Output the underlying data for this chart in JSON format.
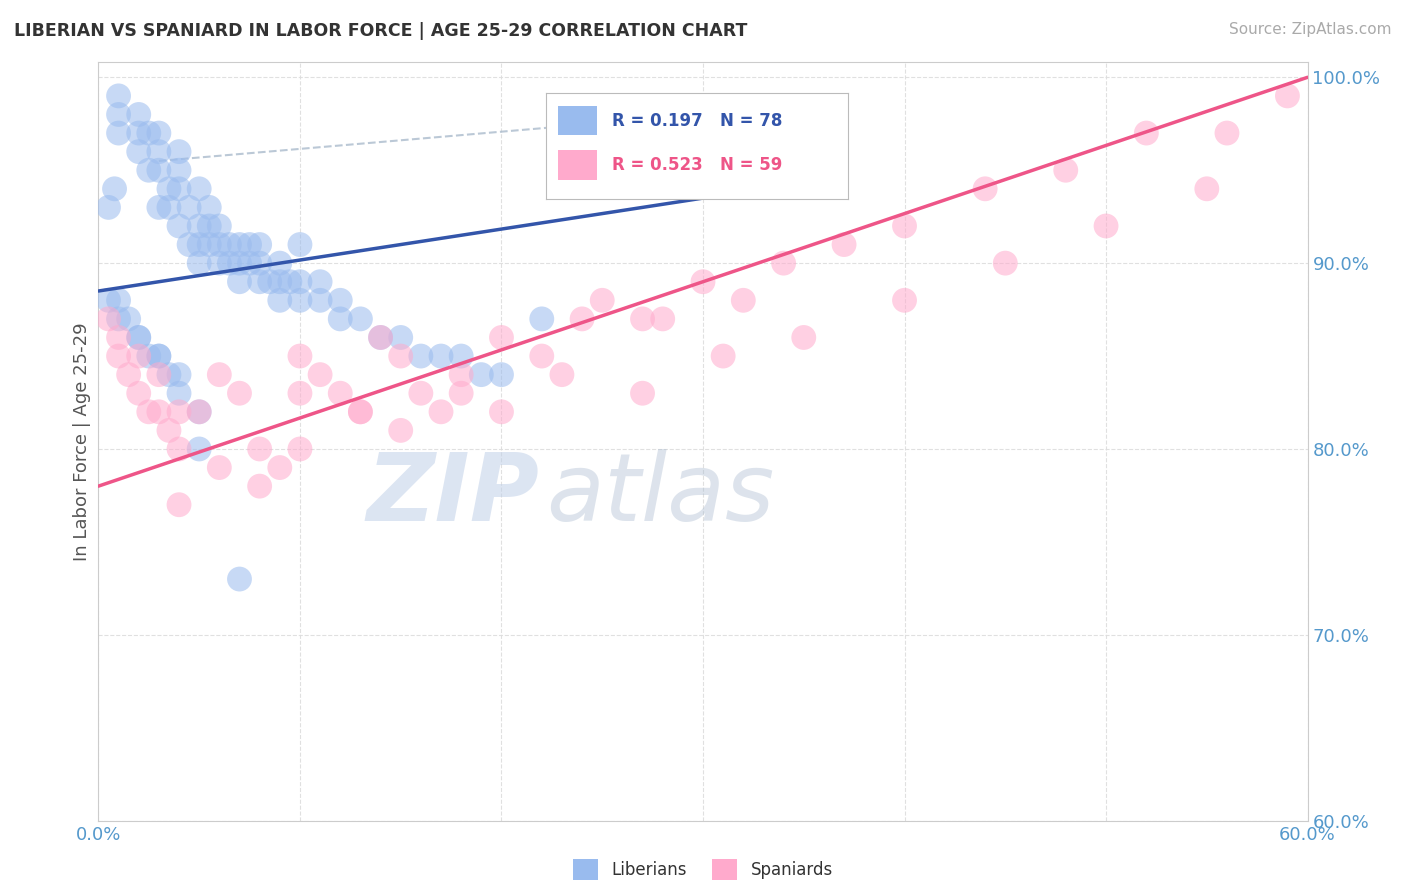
{
  "title": "LIBERIAN VS SPANIARD IN LABOR FORCE | AGE 25-29 CORRELATION CHART",
  "source_text": "Source: ZipAtlas.com",
  "ylabel_text": "In Labor Force | Age 25-29",
  "x_min": 0.0,
  "x_max": 0.6,
  "y_min": 0.6,
  "y_max": 1.008,
  "liberian_R": 0.197,
  "liberian_N": 78,
  "spaniard_R": 0.523,
  "spaniard_N": 59,
  "blue_color": "#99BBEE",
  "pink_color": "#FFAACC",
  "blue_line_color": "#3355AA",
  "pink_line_color": "#EE5588",
  "bg_color": "#FFFFFF",
  "grid_color": "#DDDDDD",
  "right_tick_color": "#5599CC",
  "bottom_tick_color": "#5599CC",
  "watermark_zip": "ZIP",
  "watermark_atlas": "atlas",
  "watermark_color_zip": "#C8D8EE",
  "watermark_color_atlas": "#AABBD0",
  "liberian_x": [
    0.005,
    0.008,
    0.01,
    0.01,
    0.01,
    0.02,
    0.02,
    0.02,
    0.025,
    0.025,
    0.03,
    0.03,
    0.03,
    0.03,
    0.035,
    0.035,
    0.04,
    0.04,
    0.04,
    0.04,
    0.045,
    0.045,
    0.05,
    0.05,
    0.05,
    0.05,
    0.055,
    0.055,
    0.055,
    0.06,
    0.06,
    0.06,
    0.065,
    0.065,
    0.07,
    0.07,
    0.07,
    0.075,
    0.075,
    0.08,
    0.08,
    0.08,
    0.085,
    0.09,
    0.09,
    0.09,
    0.095,
    0.1,
    0.1,
    0.1,
    0.11,
    0.11,
    0.12,
    0.12,
    0.13,
    0.14,
    0.15,
    0.16,
    0.17,
    0.18,
    0.19,
    0.2,
    0.22,
    0.01,
    0.015,
    0.02,
    0.025,
    0.03,
    0.035,
    0.04,
    0.005,
    0.01,
    0.02,
    0.03,
    0.04,
    0.05,
    0.05,
    0.07
  ],
  "liberian_y": [
    0.93,
    0.94,
    0.97,
    0.98,
    0.99,
    0.96,
    0.97,
    0.98,
    0.95,
    0.97,
    0.93,
    0.95,
    0.96,
    0.97,
    0.93,
    0.94,
    0.92,
    0.94,
    0.95,
    0.96,
    0.91,
    0.93,
    0.9,
    0.91,
    0.92,
    0.94,
    0.91,
    0.92,
    0.93,
    0.9,
    0.91,
    0.92,
    0.9,
    0.91,
    0.89,
    0.9,
    0.91,
    0.9,
    0.91,
    0.89,
    0.9,
    0.91,
    0.89,
    0.88,
    0.89,
    0.9,
    0.89,
    0.88,
    0.89,
    0.91,
    0.88,
    0.89,
    0.87,
    0.88,
    0.87,
    0.86,
    0.86,
    0.85,
    0.85,
    0.85,
    0.84,
    0.84,
    0.87,
    0.88,
    0.87,
    0.86,
    0.85,
    0.85,
    0.84,
    0.83,
    0.88,
    0.87,
    0.86,
    0.85,
    0.84,
    0.82,
    0.8,
    0.73
  ],
  "spaniard_x": [
    0.005,
    0.01,
    0.01,
    0.015,
    0.02,
    0.02,
    0.025,
    0.03,
    0.03,
    0.035,
    0.04,
    0.04,
    0.05,
    0.06,
    0.07,
    0.08,
    0.09,
    0.1,
    0.1,
    0.11,
    0.12,
    0.13,
    0.14,
    0.15,
    0.16,
    0.17,
    0.18,
    0.2,
    0.22,
    0.24,
    0.25,
    0.27,
    0.28,
    0.3,
    0.32,
    0.34,
    0.37,
    0.4,
    0.44,
    0.48,
    0.52,
    0.56,
    0.59,
    0.04,
    0.06,
    0.08,
    0.1,
    0.13,
    0.15,
    0.18,
    0.2,
    0.23,
    0.27,
    0.31,
    0.35,
    0.4,
    0.45,
    0.5,
    0.55
  ],
  "spaniard_y": [
    0.87,
    0.85,
    0.86,
    0.84,
    0.83,
    0.85,
    0.82,
    0.82,
    0.84,
    0.81,
    0.8,
    0.82,
    0.82,
    0.84,
    0.83,
    0.8,
    0.79,
    0.83,
    0.85,
    0.84,
    0.83,
    0.82,
    0.86,
    0.85,
    0.83,
    0.82,
    0.84,
    0.86,
    0.85,
    0.87,
    0.88,
    0.87,
    0.87,
    0.89,
    0.88,
    0.9,
    0.91,
    0.92,
    0.94,
    0.95,
    0.97,
    0.97,
    0.99,
    0.77,
    0.79,
    0.78,
    0.8,
    0.82,
    0.81,
    0.83,
    0.82,
    0.84,
    0.83,
    0.85,
    0.86,
    0.88,
    0.9,
    0.92,
    0.94
  ],
  "dash_line_x": [
    0.03,
    0.3
  ],
  "dash_line_y": [
    0.955,
    0.98
  ],
  "blue_trend_x": [
    0.0,
    0.3
  ],
  "blue_trend_y": [
    0.885,
    0.935
  ],
  "pink_trend_x": [
    0.0,
    0.6
  ],
  "pink_trend_y": [
    0.78,
    1.0
  ]
}
